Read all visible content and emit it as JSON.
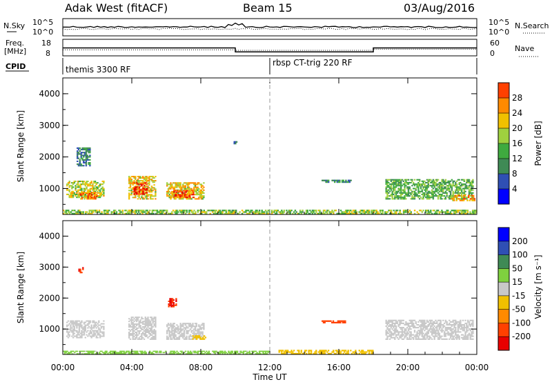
{
  "header": {
    "title": "Adak West (fitACF)",
    "beam": "Beam 15",
    "date": "03/Aug/2016"
  },
  "status_panels": {
    "nsky_label": "N.Sky",
    "nsearch_label": "N.Search",
    "freq_label": "Freq.",
    "freq_unit": "[MHz]",
    "nave_label": "Nave",
    "cpid_label": "CPID",
    "left_ticks_top": [
      "10^5",
      "10^0"
    ],
    "right_ticks_top": [
      "10^5",
      "10^0"
    ],
    "left_ticks_freq": [
      "18",
      "8"
    ],
    "right_ticks_nave": [
      "60",
      "0"
    ],
    "cpid_segments": [
      "themis 3300 RF",
      "rbsp CT-trig 220 RF"
    ],
    "freq_segments": [
      {
        "from_hour": 0,
        "to_hour": 10,
        "freq_mhz": 12.8
      },
      {
        "from_hour": 10,
        "to_hour": 18,
        "freq_mhz": 10.4
      },
      {
        "from_hour": 18,
        "to_hour": 24,
        "freq_mhz": 12.8
      }
    ],
    "nave_segments": [
      {
        "from_hour": 0,
        "to_hour": 10,
        "nave": 22
      },
      {
        "from_hour": 10,
        "to_hour": 18,
        "nave": 20
      },
      {
        "from_hour": 18,
        "to_hour": 24,
        "nave": 24
      }
    ]
  },
  "chart_data": [
    {
      "type": "heatmap",
      "quantity": "power",
      "ylabel": "Slant Range [km]",
      "yticks": [
        "1000",
        "2000",
        "3000",
        "4000"
      ],
      "ylim": [
        180,
        4500
      ],
      "xlim_hours": [
        0,
        24
      ],
      "colorbar_label": "Power [dB]",
      "colorbar_ticks": [
        "4",
        "8",
        "12",
        "16",
        "20",
        "24",
        "28"
      ],
      "colorbar_range": [
        0,
        30
      ],
      "colors": [
        "#0000ff",
        "#2f4fb4",
        "#3f8a55",
        "#3faa3f",
        "#9fd03f",
        "#f0c000",
        "#ff8a00",
        "#ff4000",
        "#e80000"
      ],
      "regions": [
        {
          "t0": 0.2,
          "t1": 2.4,
          "r0": 700,
          "r1": 1250,
          "level": 16
        },
        {
          "t0": 1.0,
          "t1": 2.0,
          "r0": 650,
          "r1": 900,
          "level": 22
        },
        {
          "t0": 3.8,
          "t1": 5.4,
          "r0": 650,
          "r1": 1400,
          "level": 18
        },
        {
          "t0": 4.1,
          "t1": 4.9,
          "r0": 800,
          "r1": 1200,
          "level": 26
        },
        {
          "t0": 6.0,
          "t1": 8.2,
          "r0": 650,
          "r1": 1200,
          "level": 18
        },
        {
          "t0": 6.4,
          "t1": 7.6,
          "r0": 700,
          "r1": 950,
          "level": 24
        },
        {
          "t0": 15.0,
          "t1": 16.8,
          "r0": 1180,
          "r1": 1280,
          "level": 8
        },
        {
          "t0": 18.7,
          "t1": 23.8,
          "r0": 650,
          "r1": 1300,
          "level": 12
        },
        {
          "t0": 22.5,
          "t1": 23.9,
          "r0": 600,
          "r1": 800,
          "level": 20
        },
        {
          "t0": 0.8,
          "t1": 1.6,
          "r0": 1700,
          "r1": 2300,
          "level": 8
        },
        {
          "t0": 9.9,
          "t1": 10.1,
          "r0": 2350,
          "r1": 2500,
          "level": 6
        },
        {
          "t0": 0.0,
          "t1": 24.0,
          "r0": 180,
          "r1": 330,
          "level": 14
        }
      ]
    },
    {
      "type": "heatmap",
      "quantity": "velocity",
      "ylabel": "Slant Range [km]",
      "yticks": [
        "1000",
        "2000",
        "3000",
        "4000"
      ],
      "ylim": [
        180,
        4500
      ],
      "xlabel": "Time UT",
      "xticks": [
        "00:00",
        "04:00",
        "08:00",
        "12:00",
        "16:00",
        "20:00",
        "00:00"
      ],
      "xlim_hours": [
        0,
        24
      ],
      "colorbar_label": "Velocity [m s⁻¹]",
      "colorbar_ticks": [
        "-200",
        "-100",
        "-50",
        "-15",
        "15",
        "50",
        "100",
        "200"
      ],
      "colors": [
        "#e80000",
        "#ff4000",
        "#ff8a00",
        "#f0c000",
        "#c8c8c8",
        "#7fd03f",
        "#3f8a55",
        "#2f4fb4",
        "#0000ff"
      ],
      "regions": [
        {
          "t0": 0.2,
          "t1": 2.4,
          "r0": 700,
          "r1": 1280,
          "level": 0
        },
        {
          "t0": 3.8,
          "t1": 5.4,
          "r0": 650,
          "r1": 1400,
          "level": 0
        },
        {
          "t0": 6.0,
          "t1": 8.2,
          "r0": 650,
          "r1": 1200,
          "level": 0
        },
        {
          "t0": 18.7,
          "t1": 23.8,
          "r0": 650,
          "r1": 1300,
          "level": 0
        },
        {
          "t0": 6.1,
          "t1": 6.6,
          "r0": 1700,
          "r1": 2000,
          "level": -200
        },
        {
          "t0": 15.0,
          "t1": 16.4,
          "r0": 1180,
          "r1": 1280,
          "level": -150
        },
        {
          "t0": 0.9,
          "t1": 1.2,
          "r0": 2800,
          "r1": 3000,
          "level": -200
        },
        {
          "t0": 7.5,
          "t1": 8.3,
          "r0": 650,
          "r1": 800,
          "level": -40
        },
        {
          "t0": 12.5,
          "t1": 18.0,
          "r0": 180,
          "r1": 330,
          "level": -30
        },
        {
          "t0": 0.0,
          "t1": 12.0,
          "r0": 180,
          "r1": 300,
          "level": 20
        }
      ]
    }
  ]
}
